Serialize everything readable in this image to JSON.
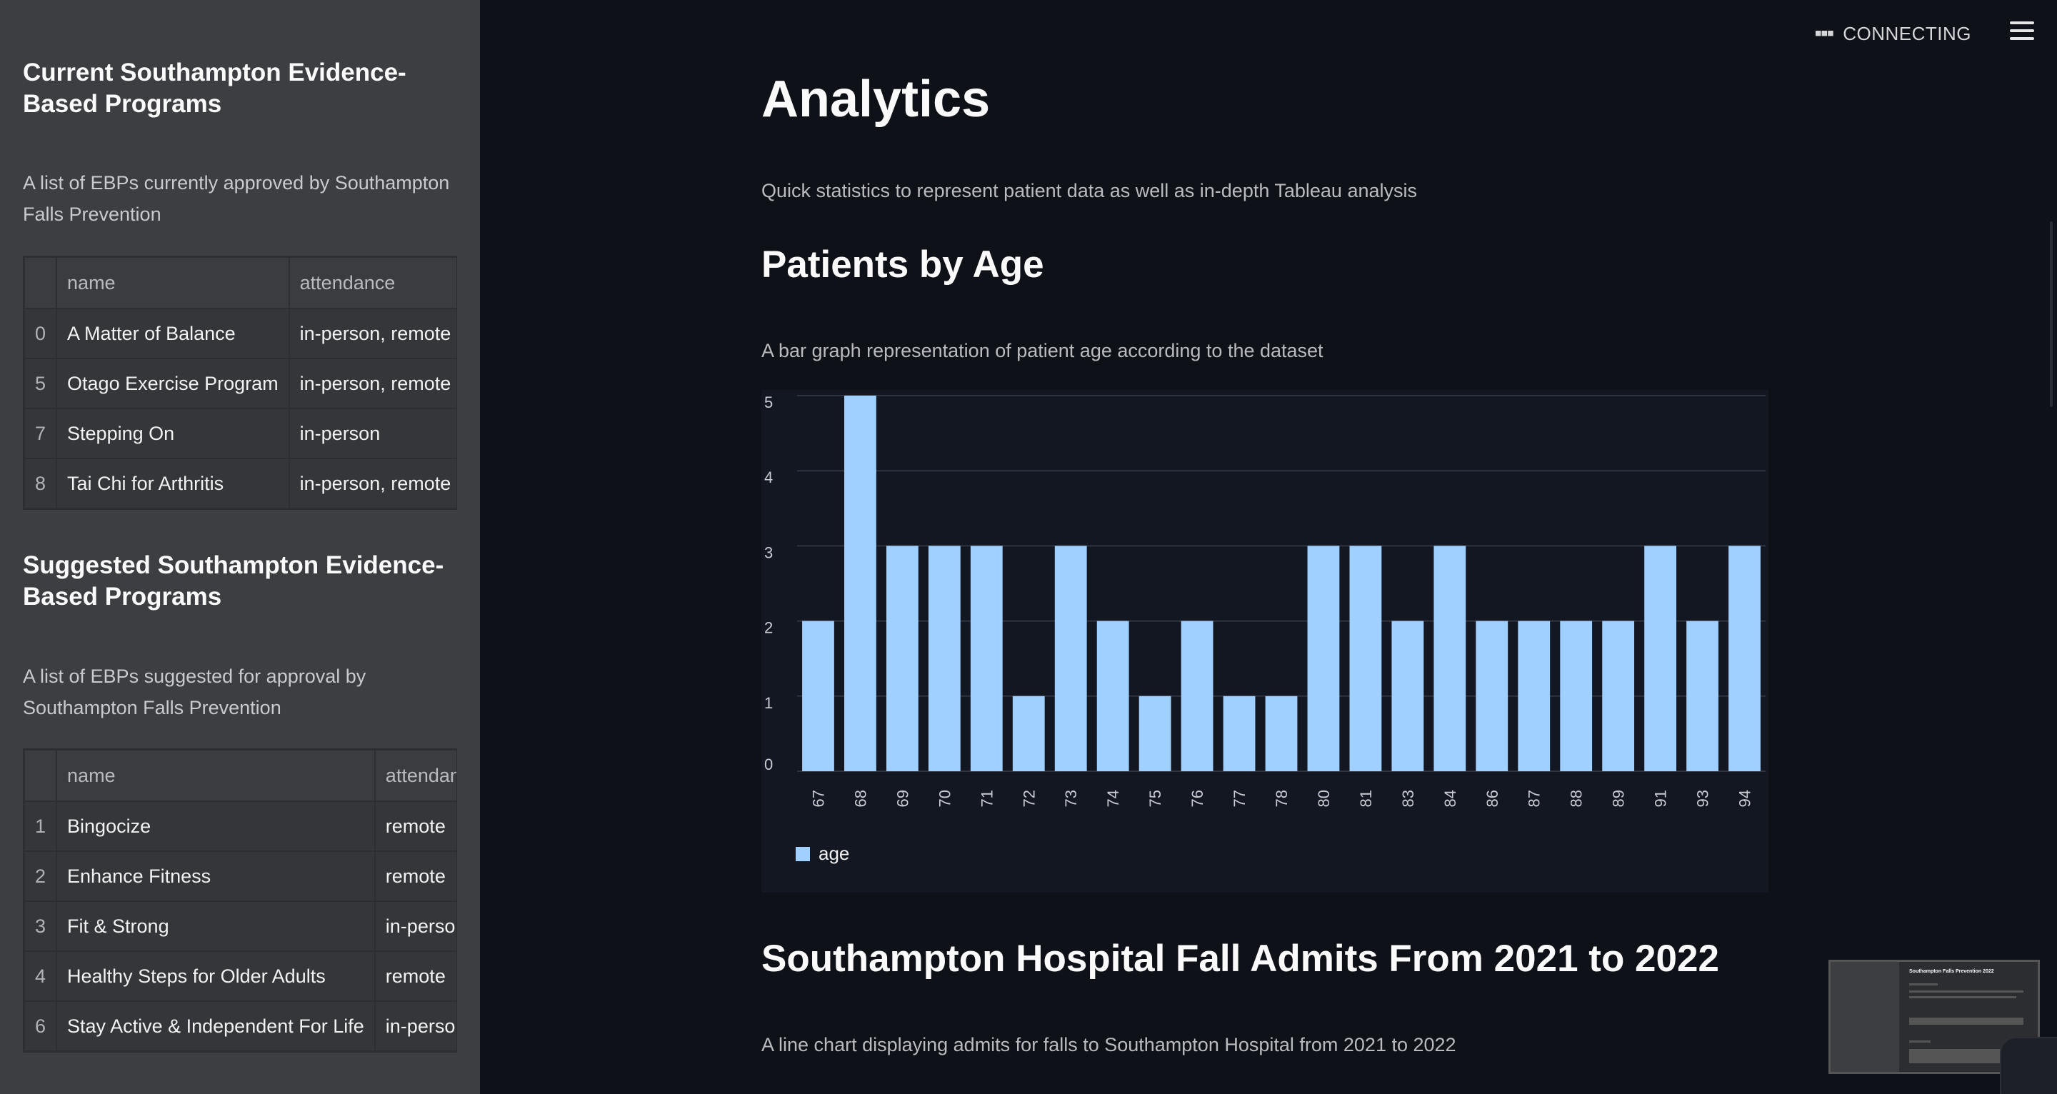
{
  "sidebar": {
    "current": {
      "heading": "Current Southampton Evidence-Based Programs",
      "description": "A list of EBPs currently approved by Southampton Falls Prevention",
      "columns": [
        "",
        "name",
        "attendance"
      ],
      "rows": [
        {
          "idx": "0",
          "name": "A Matter of Balance",
          "attendance": "in-person, remote"
        },
        {
          "idx": "5",
          "name": "Otago Exercise Program",
          "attendance": "in-person, remote"
        },
        {
          "idx": "7",
          "name": "Stepping On",
          "attendance": "in-person"
        },
        {
          "idx": "8",
          "name": "Tai Chi for Arthritis",
          "attendance": "in-person, remote"
        }
      ]
    },
    "suggested": {
      "heading": "Suggested Southampton Evidence-Based Programs",
      "description": "A list of EBPs suggested for approval by Southampton Falls Prevention",
      "columns": [
        "",
        "name",
        "attendance"
      ],
      "rows": [
        {
          "idx": "1",
          "name": "Bingocize",
          "attendance": "remote"
        },
        {
          "idx": "2",
          "name": "Enhance Fitness",
          "attendance": "remote"
        },
        {
          "idx": "3",
          "name": "Fit & Strong",
          "attendance": "in-person"
        },
        {
          "idx": "4",
          "name": "Healthy Steps for Older Adults",
          "attendance": "remote"
        },
        {
          "idx": "6",
          "name": "Stay Active & Independent For Life",
          "attendance": "in-person"
        }
      ]
    }
  },
  "status": {
    "text": "CONNECTING"
  },
  "main": {
    "title": "Analytics",
    "intro": "Quick statistics to represent patient data as well as in-depth Tableau analysis",
    "age_section": {
      "heading": "Patients by Age",
      "description": "A bar graph representation of patient age according to the dataset"
    },
    "falls_section": {
      "heading": "Southampton Hospital Fall Admits From 2021 to 2022",
      "description": "A line chart displaying admits for falls to Southampton Hospital from 2021 to 2022"
    }
  },
  "chart_data": {
    "type": "bar",
    "categories": [
      "67",
      "68",
      "69",
      "70",
      "71",
      "72",
      "73",
      "74",
      "75",
      "76",
      "77",
      "78",
      "80",
      "81",
      "83",
      "84",
      "86",
      "87",
      "88",
      "89",
      "91",
      "93",
      "94"
    ],
    "series": [
      {
        "name": "age",
        "values": [
          2,
          5,
          3,
          3,
          3,
          1,
          3,
          2,
          1,
          2,
          1,
          1,
          3,
          3,
          2,
          3,
          2,
          2,
          2,
          2,
          3,
          2,
          3
        ]
      }
    ],
    "ylim": [
      0,
      5
    ],
    "yticks": [
      0,
      1,
      2,
      3,
      4,
      5
    ],
    "grid": true,
    "legend": "bottom-left",
    "bar_color": "#9fd0ff",
    "background": "#131722"
  },
  "thumbnail": {
    "title": "Southampton Falls Prevention 2022"
  }
}
